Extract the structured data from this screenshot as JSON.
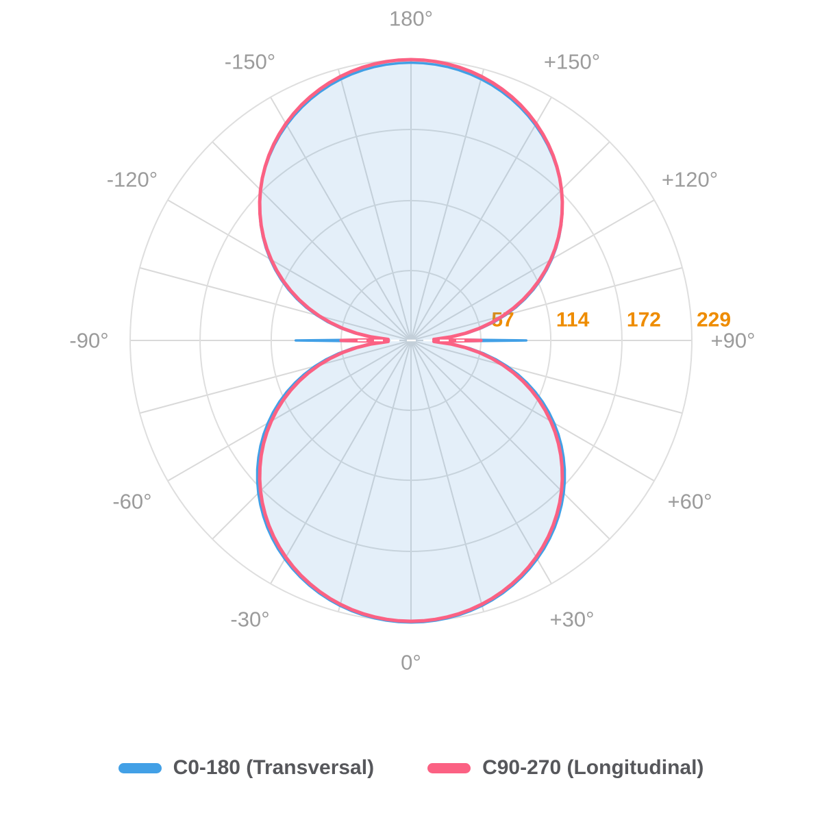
{
  "page": {
    "background": "#FFFFFF"
  },
  "chart_data": {
    "type": "polar",
    "angle_axis": {
      "unit": "degrees",
      "zero_direction": "down",
      "spoke_step_deg": 15,
      "label_step_deg": 30,
      "ticks": [
        {
          "deg": 0,
          "label": "0°"
        },
        {
          "deg": 30,
          "label": "+30°"
        },
        {
          "deg": 60,
          "label": "+60°"
        },
        {
          "deg": 90,
          "label": "+90°"
        },
        {
          "deg": 120,
          "label": "+120°"
        },
        {
          "deg": 150,
          "label": "+150°"
        },
        {
          "deg": 180,
          "label": "180°"
        },
        {
          "deg": -150,
          "label": "-150°"
        },
        {
          "deg": -120,
          "label": "-120°"
        },
        {
          "deg": -90,
          "label": "-90°"
        },
        {
          "deg": -60,
          "label": "-60°"
        },
        {
          "deg": -30,
          "label": "-30°"
        }
      ]
    },
    "radial_axis": {
      "tick_values": [
        57,
        114,
        172,
        229
      ],
      "max": 229
    },
    "series": [
      {
        "name": "C0-180 (Transversal)",
        "color": "#42A0E6",
        "line_width": 3.5,
        "curve_model": {
          "form": "I(gamma) = I0 * cos(gamma)^p, figure-eight symmetric about vertical axis, thin spike along +/-90°",
          "p": 0.77,
          "I0_lower": 230,
          "I0_upper": 226.5,
          "spike_at_90deg": 94
        },
        "gamma_deg": [
          0,
          15,
          30,
          45,
          60,
          75,
          90,
          105,
          120,
          135,
          150,
          165,
          180
        ],
        "intensity": [
          230,
          224,
          206,
          176,
          135,
          81,
          94,
          80,
          133,
          173,
          203,
          221,
          227
        ]
      },
      {
        "name": "C90-270 (Longitudinal)",
        "color": "#FB6183",
        "line_width": 5,
        "curve_model": {
          "form": "I(gamma) = I0 * cos(gamma)^p, figure-eight symmetric about vertical axis, thin spike along +/-90°",
          "p": 0.8,
          "I0_lower": 229,
          "I0_upper": 229,
          "spike_at_90deg": 57
        },
        "gamma_deg": [
          0,
          15,
          30,
          45,
          60,
          75,
          90,
          105,
          120,
          135,
          150,
          165,
          180
        ],
        "intensity": [
          229,
          223,
          204,
          174,
          132,
          78,
          57,
          78,
          132,
          174,
          204,
          223,
          229
        ]
      }
    ]
  },
  "style": {
    "ring_color": "#DEDEDE",
    "spoke_color": "#D9D9D9",
    "fill_color": "rgba(80,150,220,0.08)",
    "angle_label_color": "#9B9B9B",
    "radial_tick_color": "#EE8C00",
    "legend_text_color": "#56575B",
    "center_dash_color": "#FFFFFF"
  },
  "legend": {
    "items": [
      {
        "label": "C0-180 (Transversal)",
        "color": "#42A0E6"
      },
      {
        "label": "C90-270 (Longitudinal)",
        "color": "#FB6183"
      }
    ]
  }
}
